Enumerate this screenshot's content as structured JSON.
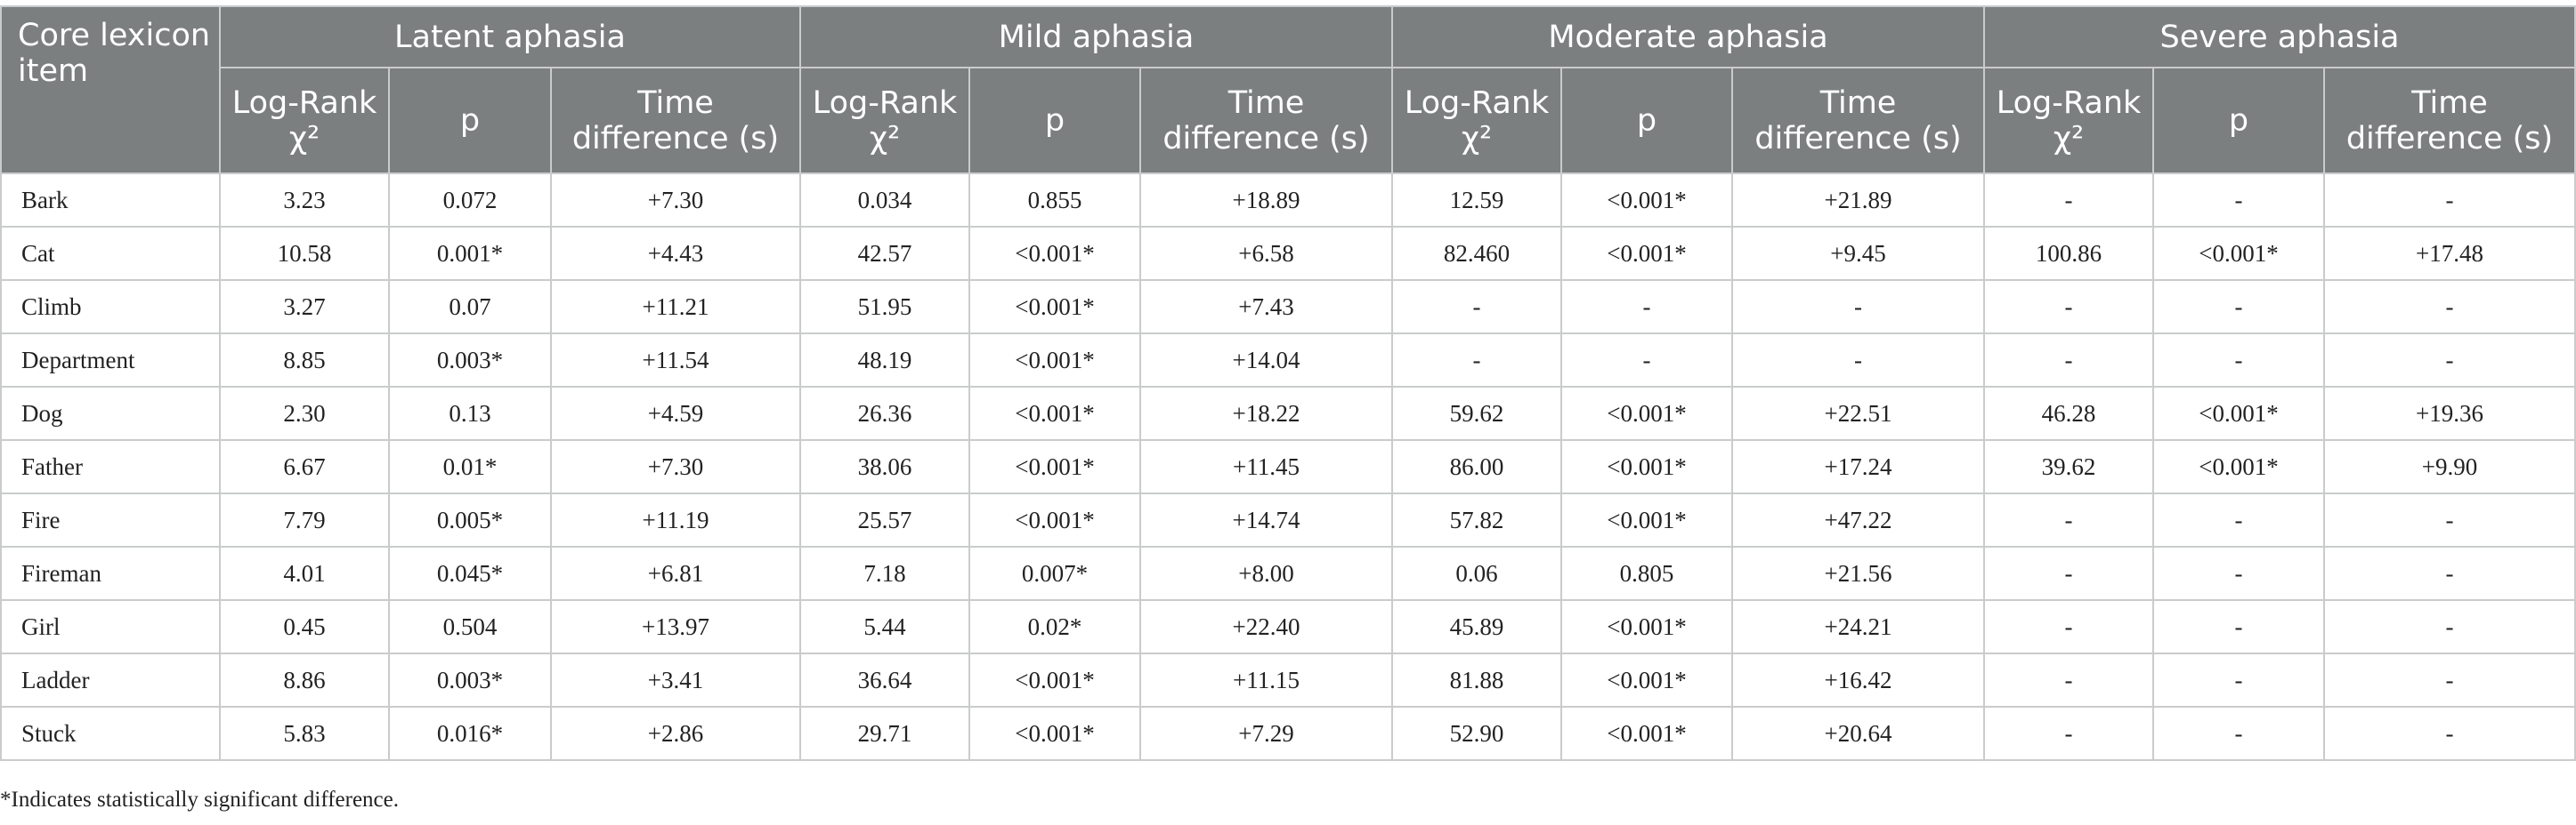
{
  "header": {
    "corner_label": "Core lexicon item",
    "groups": [
      "Latent aphasia",
      "Mild aphasia",
      "Moderate aphasia",
      "Severe aphasia"
    ],
    "subcolumns": [
      "Log-Rank χ²",
      "p",
      "Time difference (s)"
    ]
  },
  "rows": [
    {
      "item": "Bark",
      "cells": [
        "3.23",
        "0.072",
        "+7.30",
        "0.034",
        "0.855",
        "+18.89",
        "12.59",
        "<0.001*",
        "+21.89",
        "-",
        "-",
        "-"
      ]
    },
    {
      "item": "Cat",
      "cells": [
        "10.58",
        "0.001*",
        "+4.43",
        "42.57",
        "<0.001*",
        "+6.58",
        "82.460",
        "<0.001*",
        "+9.45",
        "100.86",
        "<0.001*",
        "+17.48"
      ]
    },
    {
      "item": "Climb",
      "cells": [
        "3.27",
        "0.07",
        "+11.21",
        "51.95",
        "<0.001*",
        "+7.43",
        "-",
        "-",
        "-",
        "-",
        "-",
        "-"
      ]
    },
    {
      "item": "Department",
      "cells": [
        "8.85",
        "0.003*",
        "+11.54",
        "48.19",
        "<0.001*",
        "+14.04",
        "-",
        "-",
        "-",
        "-",
        "-",
        "-"
      ]
    },
    {
      "item": "Dog",
      "cells": [
        "2.30",
        "0.13",
        "+4.59",
        "26.36",
        "<0.001*",
        "+18.22",
        "59.62",
        "<0.001*",
        "+22.51",
        "46.28",
        "<0.001*",
        "+19.36"
      ]
    },
    {
      "item": "Father",
      "cells": [
        "6.67",
        "0.01*",
        "+7.30",
        "38.06",
        "<0.001*",
        "+11.45",
        "86.00",
        "<0.001*",
        "+17.24",
        "39.62",
        "<0.001*",
        "+9.90"
      ]
    },
    {
      "item": "Fire",
      "cells": [
        "7.79",
        "0.005*",
        "+11.19",
        "25.57",
        "<0.001*",
        "+14.74",
        "57.82",
        "<0.001*",
        "+47.22",
        "-",
        "-",
        "-"
      ]
    },
    {
      "item": "Fireman",
      "cells": [
        "4.01",
        "0.045*",
        "+6.81",
        "7.18",
        "0.007*",
        "+8.00",
        "0.06",
        "0.805",
        "+21.56",
        "-",
        "-",
        "-"
      ]
    },
    {
      "item": "Girl",
      "cells": [
        "0.45",
        "0.504",
        "+13.97",
        "5.44",
        "0.02*",
        "+22.40",
        "45.89",
        "<0.001*",
        "+24.21",
        "-",
        "-",
        "-"
      ]
    },
    {
      "item": "Ladder",
      "cells": [
        "8.86",
        "0.003*",
        "+3.41",
        "36.64",
        "<0.001*",
        "+11.15",
        "81.88",
        "<0.001*",
        "+16.42",
        "-",
        "-",
        "-"
      ]
    },
    {
      "item": "Stuck",
      "cells": [
        "5.83",
        "0.016*",
        "+2.86",
        "29.71",
        "<0.001*",
        "+7.29",
        "52.90",
        "<0.001*",
        "+20.64",
        "-",
        "-",
        "-"
      ]
    }
  ],
  "footnote": "*Indicates statistically significant difference."
}
